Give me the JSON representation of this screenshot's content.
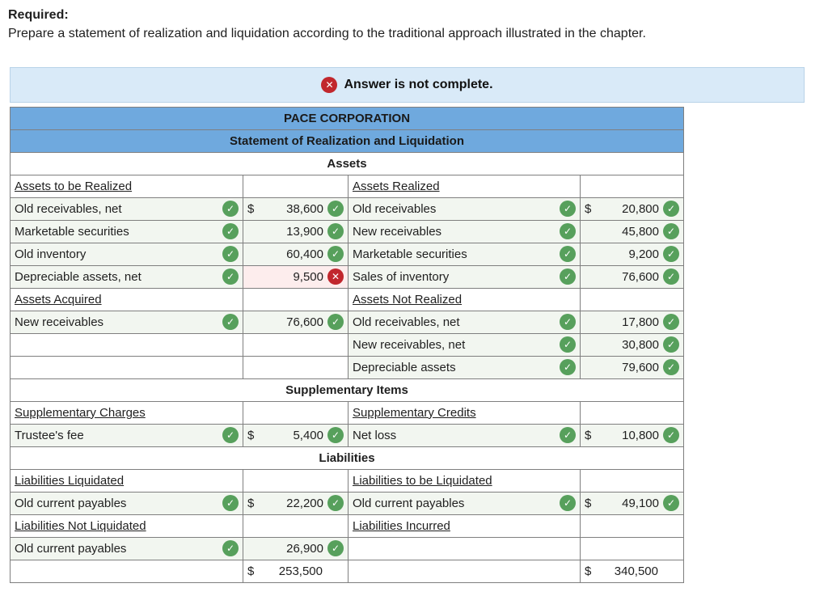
{
  "page": {
    "required_label": "Required:",
    "instruction": "Prepare a statement of realization and liquidation according to the traditional approach illustrated in the chapter."
  },
  "banner": {
    "icon": "x-circle-error-icon",
    "text": "Answer is not complete."
  },
  "colors": {
    "header_blue": "#6fa9de",
    "filled_cell_green": "#f2f6f0",
    "error_cell_pink": "#fdeded",
    "check_green": "#57a05c",
    "error_red": "#c1272d",
    "banner_blue": "#d9eaf8"
  },
  "statement": {
    "rows": [
      {
        "kind": "band",
        "text": "PACE CORPORATION"
      },
      {
        "kind": "band",
        "text": "Statement of Realization and Liquidation"
      },
      {
        "kind": "section",
        "text": "Assets"
      },
      {
        "kind": "cells",
        "cells": [
          {
            "t": "head",
            "text": "Assets to be Realized"
          },
          {
            "t": "empty"
          },
          {
            "t": "head",
            "text": "Assets Realized"
          },
          {
            "t": "empty"
          }
        ]
      },
      {
        "kind": "cells",
        "cells": [
          {
            "t": "label",
            "text": "Old receivables, net",
            "check": "ok"
          },
          {
            "t": "value",
            "dollar": "$",
            "text": "38,600",
            "check": "ok"
          },
          {
            "t": "label",
            "text": "Old receivables",
            "check": "ok"
          },
          {
            "t": "value",
            "dollar": "$",
            "text": "20,800",
            "check": "ok"
          }
        ]
      },
      {
        "kind": "cells",
        "cells": [
          {
            "t": "label",
            "text": "Marketable securities",
            "check": "ok"
          },
          {
            "t": "value",
            "text": "13,900",
            "check": "ok"
          },
          {
            "t": "label",
            "text": "New receivables",
            "check": "ok"
          },
          {
            "t": "value",
            "text": "45,800",
            "check": "ok"
          }
        ]
      },
      {
        "kind": "cells",
        "cells": [
          {
            "t": "label",
            "text": "Old inventory",
            "check": "ok"
          },
          {
            "t": "value",
            "text": "60,400",
            "check": "ok"
          },
          {
            "t": "label",
            "text": "Marketable securities",
            "check": "ok"
          },
          {
            "t": "value",
            "text": "9,200",
            "check": "ok"
          }
        ]
      },
      {
        "kind": "cells",
        "cells": [
          {
            "t": "label",
            "text": "Depreciable assets, net",
            "check": "ok"
          },
          {
            "t": "value",
            "text": "9,500",
            "check": "err"
          },
          {
            "t": "label",
            "text": "Sales of inventory",
            "check": "ok"
          },
          {
            "t": "value",
            "text": "76,600",
            "check": "ok"
          }
        ]
      },
      {
        "kind": "cells",
        "cells": [
          {
            "t": "head",
            "text": "Assets Acquired"
          },
          {
            "t": "empty"
          },
          {
            "t": "head",
            "text": "Assets Not Realized"
          },
          {
            "t": "empty"
          }
        ]
      },
      {
        "kind": "cells",
        "cells": [
          {
            "t": "label",
            "text": "New receivables",
            "check": "ok"
          },
          {
            "t": "value",
            "text": "76,600",
            "check": "ok"
          },
          {
            "t": "label",
            "text": "Old receivables, net",
            "check": "ok"
          },
          {
            "t": "value",
            "text": "17,800",
            "check": "ok"
          }
        ]
      },
      {
        "kind": "cells",
        "cells": [
          {
            "t": "empty"
          },
          {
            "t": "empty"
          },
          {
            "t": "label",
            "text": "New receivables, net",
            "check": "ok"
          },
          {
            "t": "value",
            "text": "30,800",
            "check": "ok"
          }
        ]
      },
      {
        "kind": "cells",
        "cells": [
          {
            "t": "empty"
          },
          {
            "t": "empty"
          },
          {
            "t": "label",
            "text": "Depreciable assets",
            "check": "ok"
          },
          {
            "t": "value",
            "text": "79,600",
            "check": "ok"
          }
        ]
      },
      {
        "kind": "section",
        "text": "Supplementary Items"
      },
      {
        "kind": "cells",
        "cells": [
          {
            "t": "head",
            "text": "Supplementary Charges"
          },
          {
            "t": "empty"
          },
          {
            "t": "head",
            "text": "Supplementary Credits"
          },
          {
            "t": "empty"
          }
        ]
      },
      {
        "kind": "cells",
        "cells": [
          {
            "t": "label",
            "text": "Trustee's fee",
            "check": "ok"
          },
          {
            "t": "value",
            "dollar": "$",
            "text": "5,400",
            "check": "ok"
          },
          {
            "t": "label",
            "text": "Net loss",
            "check": "ok"
          },
          {
            "t": "value",
            "dollar": "$",
            "text": "10,800",
            "check": "ok"
          }
        ]
      },
      {
        "kind": "section",
        "text": "Liabilities"
      },
      {
        "kind": "cells",
        "cells": [
          {
            "t": "head",
            "text": "Liabilities Liquidated"
          },
          {
            "t": "empty"
          },
          {
            "t": "head",
            "text": "Liabilities to be Liquidated"
          },
          {
            "t": "empty"
          }
        ]
      },
      {
        "kind": "cells",
        "cells": [
          {
            "t": "label",
            "text": "Old current payables",
            "check": "ok"
          },
          {
            "t": "value",
            "dollar": "$",
            "text": "22,200",
            "check": "ok"
          },
          {
            "t": "label",
            "text": "Old current payables",
            "check": "ok"
          },
          {
            "t": "value",
            "dollar": "$",
            "text": "49,100",
            "check": "ok"
          }
        ]
      },
      {
        "kind": "cells",
        "cells": [
          {
            "t": "head",
            "text": "Liabilities Not Liquidated"
          },
          {
            "t": "empty"
          },
          {
            "t": "head",
            "text": "Liabilities Incurred"
          },
          {
            "t": "empty"
          }
        ]
      },
      {
        "kind": "cells",
        "cells": [
          {
            "t": "label",
            "text": "Old current payables",
            "check": "ok"
          },
          {
            "t": "value",
            "text": "26,900",
            "check": "ok"
          },
          {
            "t": "empty"
          },
          {
            "t": "box"
          }
        ]
      },
      {
        "kind": "cells",
        "cells": [
          {
            "t": "empty"
          },
          {
            "t": "total",
            "dollar": "$",
            "text": "253,500"
          },
          {
            "t": "empty"
          },
          {
            "t": "total",
            "dollar": "$",
            "text": "340,500"
          }
        ]
      }
    ]
  }
}
